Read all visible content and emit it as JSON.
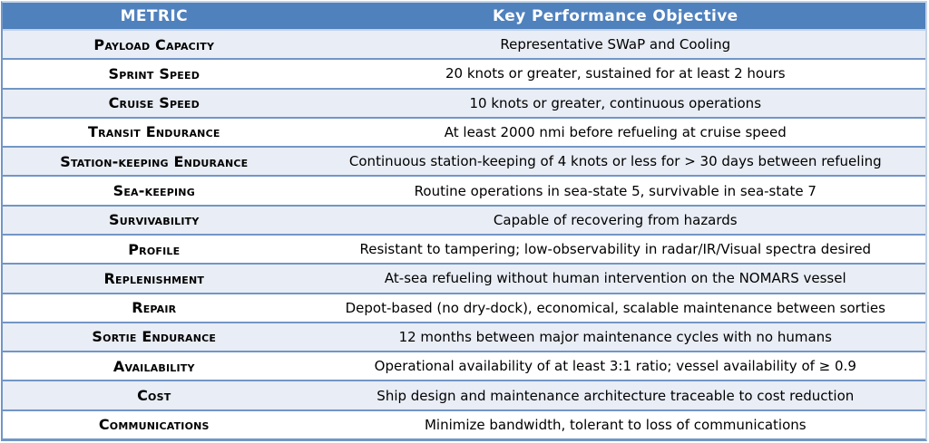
{
  "table": {
    "header": {
      "metric": "METRIC",
      "objective": "Key Performance Objective"
    },
    "rows": [
      {
        "metric": "Payload Capacity",
        "objective": "Representative SWaP and Cooling"
      },
      {
        "metric": "Sprint Speed",
        "objective": "20 knots or greater, sustained for at least 2 hours"
      },
      {
        "metric": "Cruise Speed",
        "objective": "10 knots or greater, continuous operations"
      },
      {
        "metric": "Transit Endurance",
        "objective": "At least 2000 nmi before refueling at cruise speed"
      },
      {
        "metric": "Station-keeping Endurance",
        "objective": "Continuous station-keeping of 4 knots or less for > 30 days between refueling"
      },
      {
        "metric": "Sea-keeping",
        "objective": "Routine operations in sea-state 5, survivable in sea-state 7"
      },
      {
        "metric": "Survivability",
        "objective": "Capable of recovering from hazards"
      },
      {
        "metric": "Profile",
        "objective": "Resistant to tampering; low-observability in radar/IR/Visual spectra desired"
      },
      {
        "metric": "Replenishment",
        "objective": "At-sea refueling without human intervention on the NOMARS vessel"
      },
      {
        "metric": "Repair",
        "objective": "Depot-based (no dry-dock), economical, scalable maintenance between sorties"
      },
      {
        "metric": "Sortie Endurance",
        "objective": "12 months between major maintenance cycles with no humans"
      },
      {
        "metric": "Availability",
        "objective": "Operational availability of at least 3:1 ratio; vessel availability of ≥ 0.9"
      },
      {
        "metric": "Cost",
        "objective": "Ship design and maintenance architecture traceable to cost reduction"
      },
      {
        "metric": "Communications",
        "objective": "Minimize bandwidth, tolerant to loss of communications"
      }
    ],
    "colors": {
      "header_bg": "#4F81BD",
      "header_text": "#FFFFFF",
      "alt_row_bg": "#E9EDF5",
      "row_bg": "#FFFFFF",
      "separator": "#7296C6",
      "outer_border_light": "#C3D3E8",
      "text": "#000000"
    }
  }
}
